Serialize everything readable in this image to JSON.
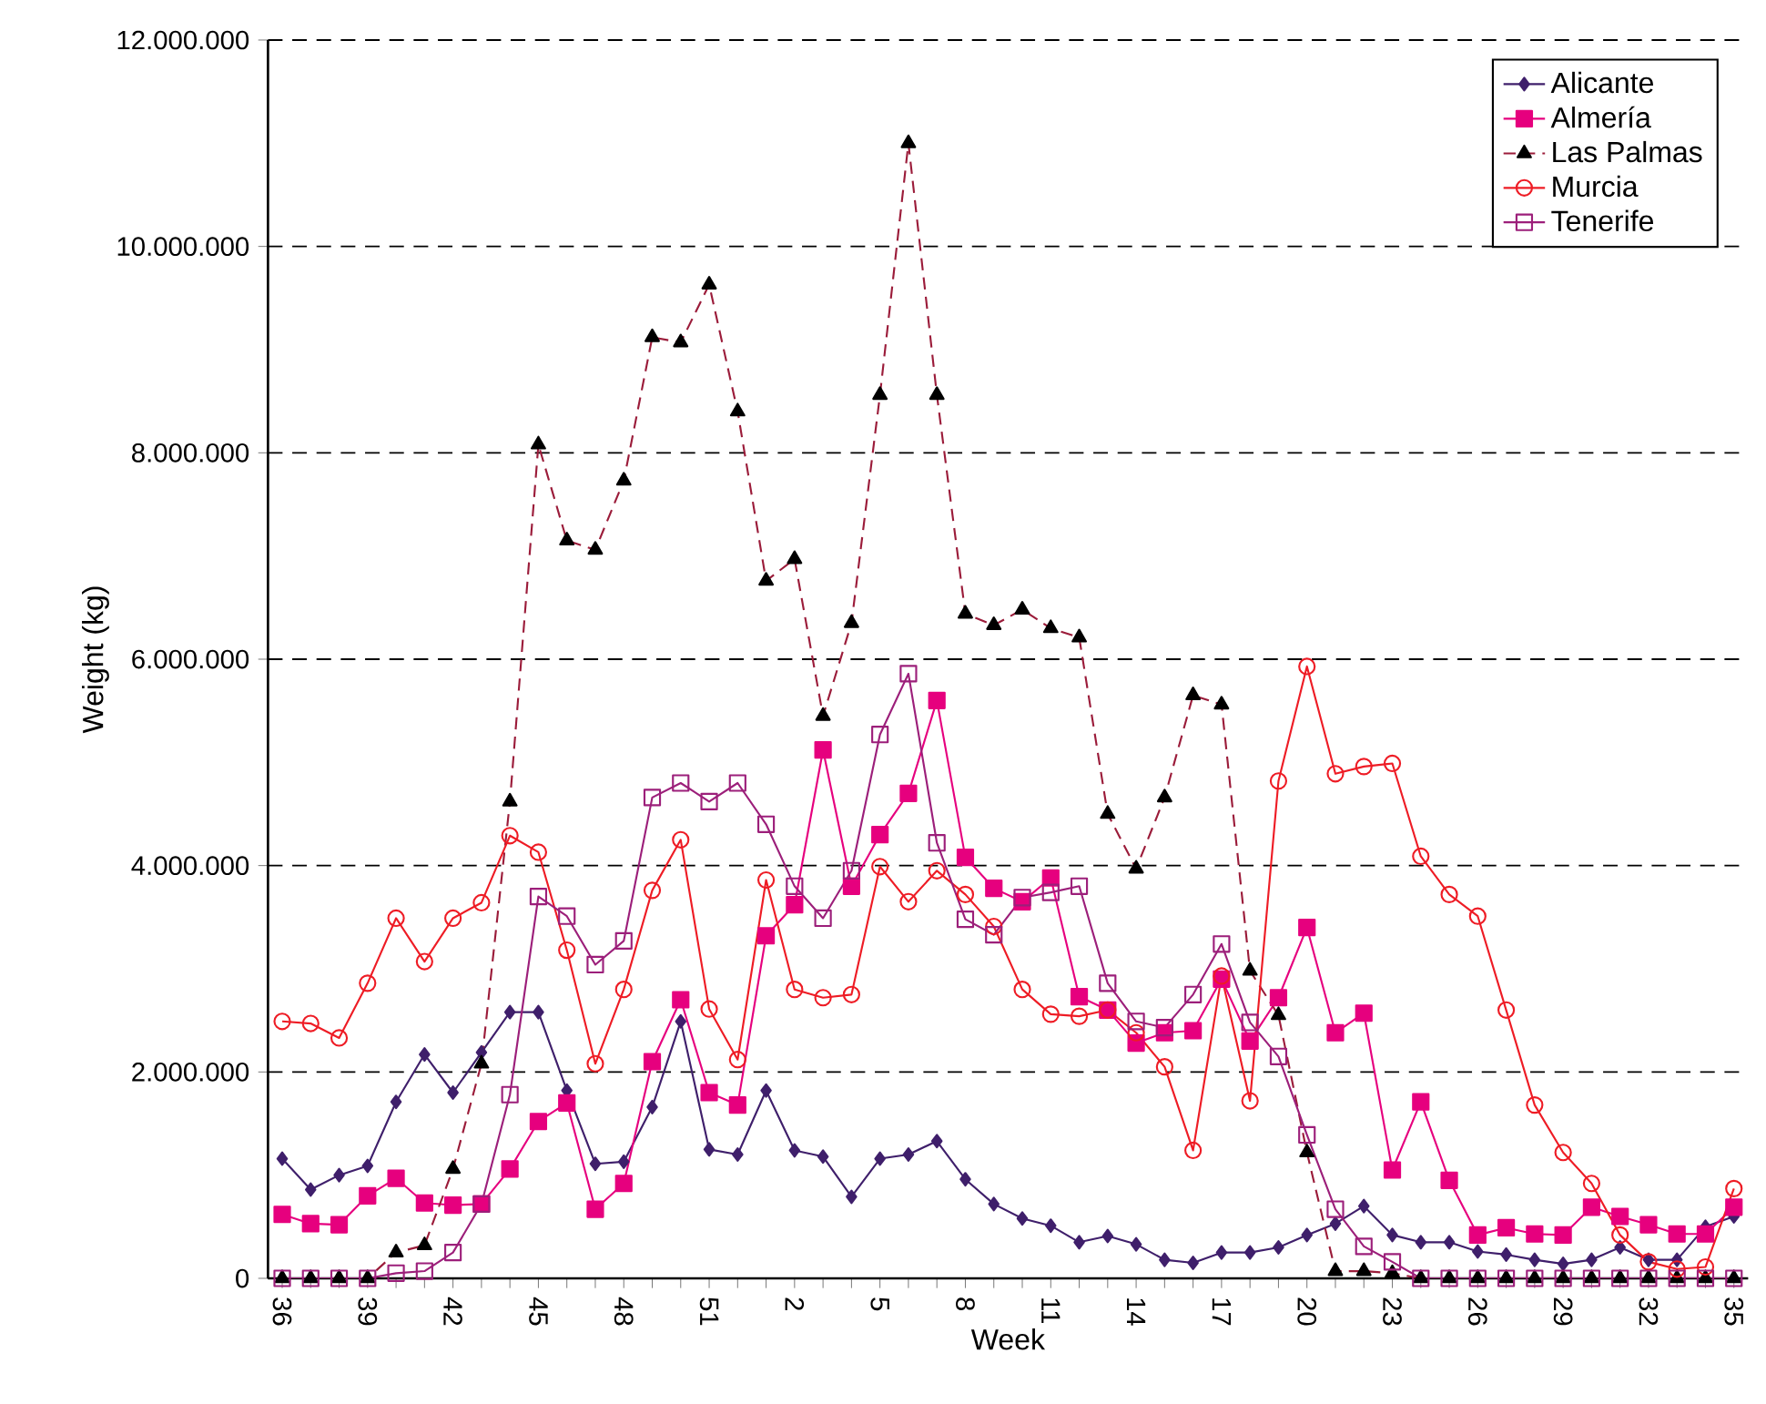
{
  "chart_data": {
    "type": "line",
    "xlabel": "Week",
    "ylabel": "Weight (kg)",
    "categories": [
      "36",
      null,
      null,
      "39",
      null,
      null,
      "42",
      null,
      null,
      "45",
      null,
      null,
      "48",
      null,
      null,
      "51",
      null,
      null,
      "2",
      null,
      null,
      "5",
      null,
      null,
      "8",
      null,
      null,
      "11",
      null,
      null,
      "14",
      null,
      null,
      "17",
      null,
      null,
      "20",
      null,
      null,
      "23",
      null,
      null,
      "26",
      null,
      null,
      "29",
      null,
      null,
      "32",
      null,
      null,
      "35"
    ],
    "ylim": [
      0,
      12000000
    ],
    "yticks": [
      0,
      {
        "value": 2000000,
        "label": "2.000.000"
      },
      {
        "value": 4000000,
        "label": "4.000.000"
      },
      {
        "value": 6000000,
        "label": "6.000.000"
      },
      {
        "value": 8000000,
        "label": "8.000.000"
      },
      {
        "value": 10000000,
        "label": "10.000.000"
      },
      {
        "value": 12000000,
        "label": "12.000.000"
      }
    ],
    "grid": "y",
    "legend": "top right",
    "series": [
      {
        "name": "Alicante",
        "color": "#3f1f6b",
        "marker": "diamond",
        "line_style": "solid",
        "values": [
          1160000,
          860000,
          1000000,
          1090000,
          1710000,
          2170000,
          1800000,
          2190000,
          2580000,
          2580000,
          1820000,
          1110000,
          1130000,
          1660000,
          2490000,
          1250000,
          1200000,
          1820000,
          1240000,
          1180000,
          790000,
          1160000,
          1200000,
          1330000,
          960000,
          720000,
          580000,
          510000,
          350000,
          410000,
          330000,
          180000,
          150000,
          250000,
          250000,
          300000,
          420000,
          530000,
          700000,
          420000,
          350000,
          350000,
          260000,
          230000,
          180000,
          140000,
          180000,
          300000,
          180000,
          180000,
          500000,
          600000
        ]
      },
      {
        "name": "Almería",
        "color": "#e6007e",
        "marker": "square",
        "line_style": "solid",
        "values": [
          620000,
          530000,
          520000,
          800000,
          970000,
          730000,
          710000,
          720000,
          1060000,
          1520000,
          1700000,
          670000,
          920000,
          2100000,
          2700000,
          1800000,
          1680000,
          3320000,
          3620000,
          5120000,
          3800000,
          4300000,
          4700000,
          5600000,
          4080000,
          3780000,
          3650000,
          3880000,
          2730000,
          2600000,
          2280000,
          2380000,
          2400000,
          2900000,
          2300000,
          2720000,
          3400000,
          2380000,
          2570000,
          1050000,
          1710000,
          950000,
          420000,
          490000,
          430000,
          420000,
          690000,
          600000,
          520000,
          430000,
          430000,
          690000
        ]
      },
      {
        "name": "Las Palmas",
        "color": "#9b1c3a",
        "marker": "triangle",
        "line_style": "dashed",
        "values": [
          0,
          0,
          0,
          0,
          250000,
          320000,
          1060000,
          2080000,
          4620000,
          8080000,
          7150000,
          7060000,
          7730000,
          9120000,
          9070000,
          9630000,
          8400000,
          6760000,
          6970000,
          5450000,
          6350000,
          8560000,
          11000000,
          8560000,
          6440000,
          6330000,
          6480000,
          6300000,
          6210000,
          4500000,
          3970000,
          4660000,
          5650000,
          5560000,
          2980000,
          2550000,
          1220000,
          70000,
          70000,
          50000,
          0,
          0,
          0,
          0,
          0,
          0,
          0,
          0,
          0,
          0,
          0,
          0
        ]
      },
      {
        "name": "Murcia",
        "color": "#ee1c25",
        "marker": "circle",
        "line_style": "solid",
        "values": [
          2490000,
          2470000,
          2330000,
          2860000,
          3490000,
          3070000,
          3490000,
          3640000,
          4290000,
          4130000,
          3180000,
          2080000,
          2800000,
          3760000,
          4250000,
          2610000,
          2120000,
          3860000,
          2800000,
          2720000,
          2750000,
          3990000,
          3650000,
          3950000,
          3720000,
          3410000,
          2800000,
          2560000,
          2540000,
          2600000,
          2380000,
          2050000,
          1240000,
          2930000,
          1720000,
          4820000,
          5930000,
          4890000,
          4960000,
          4990000,
          4090000,
          3720000,
          3510000,
          2600000,
          1680000,
          1220000,
          920000,
          420000,
          160000,
          90000,
          110000,
          870000
        ]
      },
      {
        "name": "Tenerife",
        "color": "#9c1f7a",
        "marker": "square",
        "line_style": "solid",
        "values": [
          0,
          0,
          0,
          0,
          50000,
          70000,
          250000,
          720000,
          1780000,
          3700000,
          3510000,
          3040000,
          3270000,
          4660000,
          4800000,
          4620000,
          4800000,
          4400000,
          3800000,
          3490000,
          3950000,
          5270000,
          5860000,
          4220000,
          3480000,
          3330000,
          3690000,
          3740000,
          3800000,
          2860000,
          2490000,
          2430000,
          2750000,
          3240000,
          2480000,
          2150000,
          1390000,
          670000,
          310000,
          160000,
          0,
          0,
          0,
          0,
          0,
          0,
          0,
          0,
          0,
          0,
          0,
          0
        ]
      }
    ]
  }
}
